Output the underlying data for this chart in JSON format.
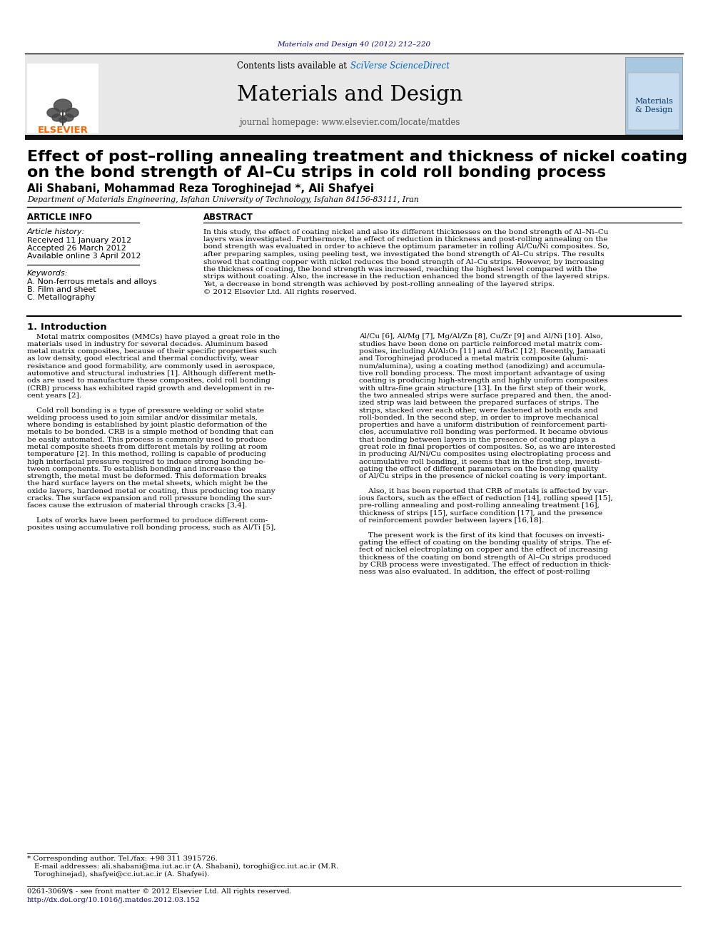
{
  "journal_ref": "Materials and Design 40 (2012) 212–220",
  "journal_ref_color": "#00008B",
  "header_text": "Contents lists available at ",
  "sciverse_text": "SciVerse ScienceDirect",
  "sciverse_color": "#0066CC",
  "journal_name": "Materials and Design",
  "journal_homepage": "journal homepage: www.elsevier.com/locate/matdes",
  "elsevier_color": "#FF6600",
  "article_title_line1": "Effect of post–rolling annealing treatment and thickness of nickel coating",
  "article_title_line2": "on the bond strength of Al–Cu strips in cold roll bonding process",
  "authors": "Ali Shabani, Mohammad Reza Toroghinejad *, Ali Shafyei",
  "affiliation": "Department of Materials Engineering, Isfahan University of Technology, Isfahan 84156-83111, Iran",
  "article_info_header": "ARTICLE INFO",
  "abstract_header": "ABSTRACT",
  "article_history_label": "Article history:",
  "received": "Received 11 January 2012",
  "accepted": "Accepted 26 March 2012",
  "available": "Available online 3 April 2012",
  "keywords_label": "Keywords:",
  "keyword_a": "A. Non-ferrous metals and alloys",
  "keyword_b": "B. Film and sheet",
  "keyword_c": "C. Metallography",
  "intro_heading": "1. Introduction",
  "footnote_star": "* Corresponding author. Tel./fax: +98 311 3915726.",
  "footnote_email": "E-mail addresses: ali.shabani@ma.iut.ac.ir (A. Shabani), toroghi@cc.iut.ac.ir (M.R.",
  "footnote_email2": "Toroghinejad), shafyei@cc.iut.ac.ir (A. Shafyei).",
  "footnote_issn": "0261-3069/$ - see front matter © 2012 Elsevier Ltd. All rights reserved.",
  "footnote_doi": "http://dx.doi.org/10.1016/j.matdes.2012.03.152",
  "bg_color": "#FFFFFF",
  "header_bg_color": "#E8E8E8",
  "black_bar_color": "#111111",
  "cover_bg": "#A8C8E0",
  "body_font_size": 7.5
}
